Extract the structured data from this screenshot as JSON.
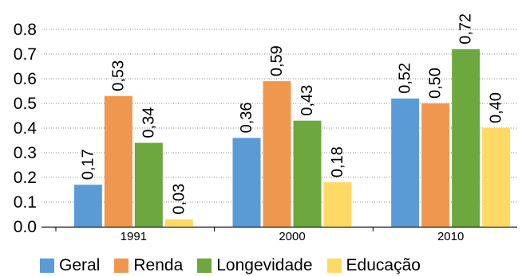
{
  "chart_data": {
    "type": "bar",
    "categories": [
      "1991",
      "2000",
      "2010"
    ],
    "series": [
      {
        "name": "Geral",
        "values": [
          0.17,
          0.36,
          0.52
        ],
        "labels": [
          "0,17",
          "0,36",
          "0,52"
        ],
        "color": "#5b9bd5"
      },
      {
        "name": "Renda",
        "values": [
          0.53,
          0.59,
          0.5
        ],
        "labels": [
          "0,53",
          "0,59",
          "0,50"
        ],
        "color": "#f0974f"
      },
      {
        "name": "Longevidade",
        "values": [
          0.34,
          0.43,
          0.72
        ],
        "labels": [
          "0,34",
          "0,43",
          "0,72"
        ],
        "color": "#6ca83d"
      },
      {
        "name": "Educação",
        "values": [
          0.03,
          0.18,
          0.4
        ],
        "labels": [
          "0,03",
          "0,18",
          "0,40"
        ],
        "color": "#ffd966"
      }
    ],
    "yticks": [
      "0.0",
      "0.1",
      "0.2",
      "0.3",
      "0.4",
      "0.5",
      "0.6",
      "0.7",
      "0.8"
    ],
    "ylim": [
      0,
      0.8
    ],
    "grid": true,
    "legend_position": "bottom",
    "title": "",
    "xlabel": "",
    "ylabel": ""
  }
}
